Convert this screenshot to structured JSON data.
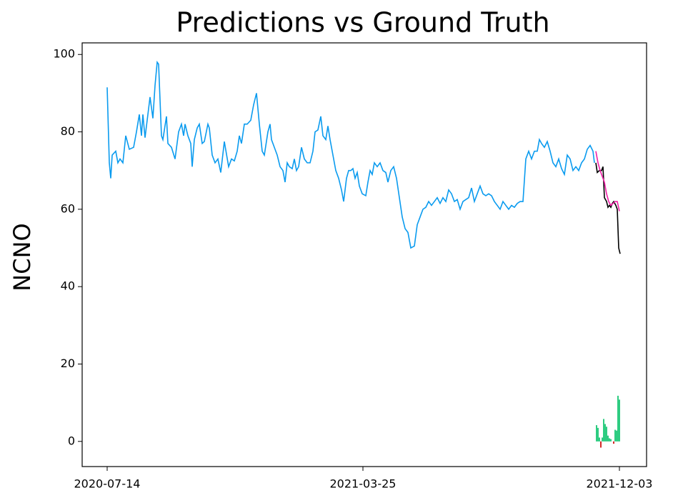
{
  "chart_data": {
    "type": "line",
    "title": "Predictions vs Ground Truth",
    "ylabel": "NCNO",
    "xlim": [
      -35,
      755
    ],
    "ylim": [
      -6.5,
      103
    ],
    "xticks": [
      {
        "value": 0,
        "label": "2020-07-14"
      },
      {
        "value": 358,
        "label": "2021-03-25"
      },
      {
        "value": 717,
        "label": "2021-12-03"
      }
    ],
    "yticks": [
      0,
      20,
      40,
      60,
      80,
      100
    ],
    "series": [
      {
        "type": "line",
        "color": "#0a9bef",
        "x": [
          0,
          3,
          5,
          7,
          12,
          15,
          18,
          22,
          26,
          31,
          37,
          41,
          45,
          48,
          50,
          53,
          56,
          60,
          64,
          67,
          70,
          72,
          76,
          78,
          83,
          85,
          90,
          95,
          100,
          104,
          107,
          109,
          113,
          117,
          119,
          122,
          126,
          129,
          133,
          136,
          141,
          143,
          147,
          151,
          155,
          159,
          164,
          170,
          174,
          178,
          182,
          185,
          188,
          192,
          196,
          201,
          205,
          209,
          213,
          217,
          220,
          225,
          228,
          230,
          234,
          238,
          242,
          246,
          249,
          252,
          255,
          259,
          262,
          265,
          268,
          272,
          276,
          280,
          284,
          288,
          291,
          295,
          299,
          302,
          306,
          309,
          312,
          316,
          320,
          324,
          328,
          331,
          335,
          338,
          341,
          344,
          347,
          350,
          353,
          357,
          362,
          365,
          368,
          371,
          374,
          378,
          382,
          386,
          390,
          393,
          397,
          401,
          405,
          409,
          413,
          417,
          421,
          425,
          430,
          434,
          438,
          442,
          446,
          450,
          454,
          458,
          462,
          466,
          470,
          474,
          478,
          482,
          486,
          490,
          494,
          498,
          502,
          506,
          510,
          514,
          518,
          522,
          526,
          530,
          534,
          538,
          542,
          546,
          550,
          554,
          558,
          562,
          566,
          570,
          574,
          578,
          582,
          586,
          590,
          594,
          598,
          602,
          605,
          608,
          612,
          616,
          620,
          624,
          628,
          632,
          636,
          640,
          644,
          648,
          652,
          656,
          660,
          664,
          668,
          672,
          676,
          680,
          682
        ],
        "values": [
          91.5,
          72,
          68,
          74,
          75,
          72,
          73,
          72,
          79,
          75.5,
          76,
          80,
          84.5,
          79,
          84.5,
          78.5,
          83,
          89,
          83.5,
          92,
          98,
          97.5,
          79,
          78,
          84,
          77,
          76,
          73,
          80,
          82,
          79,
          82,
          79,
          77,
          71,
          78,
          81,
          82,
          77,
          77.5,
          82,
          81,
          74,
          72,
          73,
          69.5,
          77.5,
          71,
          73,
          72.5,
          75,
          79,
          77,
          82,
          82,
          83,
          87,
          90,
          82,
          75,
          74,
          80,
          82,
          78,
          76,
          74,
          71,
          70,
          67,
          72,
          71,
          70.5,
          73,
          70,
          71,
          76,
          73,
          72,
          72,
          75,
          80,
          80.5,
          84,
          79,
          78,
          81.5,
          78,
          74,
          70,
          68,
          65,
          62,
          68,
          70,
          70,
          70.5,
          68,
          69.5,
          66,
          64,
          63.5,
          67,
          70,
          69,
          72,
          71,
          72,
          70,
          69.5,
          67,
          70,
          71,
          68,
          63,
          58,
          55,
          54,
          50,
          50.5,
          56,
          58,
          60,
          60.5,
          62,
          61,
          62,
          63,
          61.5,
          63,
          62,
          65,
          64,
          62,
          62.5,
          60,
          62,
          62.5,
          63,
          65.5,
          62,
          64,
          66,
          64,
          63.5,
          64,
          63.5,
          62,
          61,
          60,
          62,
          61,
          60,
          61,
          60.5,
          61.5,
          62,
          62,
          73,
          75,
          73,
          75,
          75,
          78,
          77,
          76,
          77.5,
          75,
          72,
          71,
          73,
          70.5,
          69,
          74,
          73,
          70,
          71,
          70,
          72,
          73,
          75.5,
          76.5,
          75,
          72
        ]
      },
      {
        "type": "line",
        "color": "#000000",
        "x": [
          684,
          686,
          689,
          692,
          694,
          696,
          699,
          701,
          703,
          705,
          707,
          709,
          712,
          714,
          716,
          718
        ],
        "values": [
          72,
          69.5,
          70,
          70,
          71,
          63,
          62,
          60.5,
          61,
          60.5,
          61.5,
          62,
          61,
          60,
          50,
          48.5
        ]
      },
      {
        "type": "line",
        "color": "#f01fa8",
        "x": [
          684,
          687,
          690,
          693,
          696,
          699,
          702,
          705,
          708,
          711,
          714,
          717
        ],
        "values": [
          75,
          72,
          70,
          68.5,
          67,
          64,
          62,
          61,
          61.5,
          62,
          62,
          59.5
        ]
      },
      {
        "type": "bar",
        "color": "#2ecc81",
        "negative_color": "#d62728",
        "x": [
          685,
          687,
          689,
          691,
          693,
          695,
          697,
          699,
          701,
          703,
          705,
          709,
          711,
          713,
          715,
          717
        ],
        "values": [
          4.2,
          3.5,
          1,
          -1.6,
          1,
          5.8,
          4.5,
          3.8,
          1.5,
          0.8,
          0.6,
          -0.6,
          3,
          2.8,
          11.8,
          10.8
        ]
      }
    ]
  }
}
